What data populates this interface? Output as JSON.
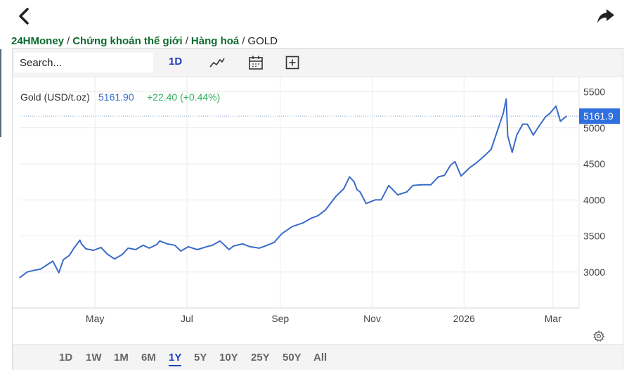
{
  "nav": {
    "back_icon": "chevron-left-icon",
    "share_icon": "share-arrow-icon"
  },
  "breadcrumb": {
    "items": [
      "24HMoney",
      "Chứng khoán thế giới",
      "Hàng hoá"
    ],
    "separator": "/",
    "current": "GOLD"
  },
  "toolbar": {
    "search_placeholder": "Search...",
    "interval": "1D",
    "icons": [
      "line-chart-icon",
      "calendar-icon",
      "add-indicator-icon"
    ]
  },
  "legend": {
    "symbol": "Gold (USD/t.oz)",
    "price": "5161.90",
    "change": "+22.40 (+0.44%)"
  },
  "price_label": "5161.9",
  "range_buttons": [
    "1D",
    "1W",
    "1M",
    "6M",
    "1Y",
    "5Y",
    "10Y",
    "25Y",
    "50Y",
    "All"
  ],
  "active_range": "1Y",
  "colors": {
    "line": "#3a6bc9",
    "up": "#2fae5b",
    "brand_green": "#0d6b2e",
    "active": "#1d3fc1",
    "price_tag": "#2f6fe0"
  },
  "chart_data": {
    "type": "line",
    "title": "",
    "xlabel": "",
    "ylabel": "",
    "x_ticks": [
      "May",
      "Jul",
      "Sep",
      "Nov",
      "2026",
      "Mar"
    ],
    "y_ticks": [
      3000,
      3500,
      4000,
      4500,
      5000,
      5500
    ],
    "ylim": [
      2500,
      5700
    ],
    "grid": true,
    "last_value_line": 5161.9,
    "series": [
      {
        "name": "Gold (USD/t.oz)",
        "x": [
          "2025-03-12",
          "2025-03-17",
          "2025-03-21",
          "2025-03-26",
          "2025-03-31",
          "2025-04-03",
          "2025-04-07",
          "2025-04-10",
          "2025-04-14",
          "2025-04-17",
          "2025-04-21",
          "2025-04-22",
          "2025-04-25",
          "2025-04-30",
          "2025-05-05",
          "2025-05-09",
          "2025-05-14",
          "2025-05-19",
          "2025-05-23",
          "2025-05-28",
          "2025-06-02",
          "2025-06-06",
          "2025-06-11",
          "2025-06-13",
          "2025-06-18",
          "2025-06-23",
          "2025-06-27",
          "2025-07-02",
          "2025-07-08",
          "2025-07-14",
          "2025-07-18",
          "2025-07-23",
          "2025-07-29",
          "2025-08-01",
          "2025-08-07",
          "2025-08-12",
          "2025-08-18",
          "2025-08-22",
          "2025-08-28",
          "2025-09-02",
          "2025-09-09",
          "2025-09-16",
          "2025-09-22",
          "2025-09-26",
          "2025-10-01",
          "2025-10-08",
          "2025-10-13",
          "2025-10-17",
          "2025-10-20",
          "2025-10-22",
          "2025-10-24",
          "2025-10-28",
          "2025-11-03",
          "2025-11-07",
          "2025-11-12",
          "2025-11-18",
          "2025-11-24",
          "2025-11-28",
          "2025-12-04",
          "2025-12-10",
          "2025-12-15",
          "2025-12-19",
          "2025-12-23",
          "2025-12-26",
          "2025-12-30",
          "2026-01-05",
          "2026-01-09",
          "2026-01-14",
          "2026-01-19",
          "2026-01-23",
          "2026-01-27",
          "2026-01-29",
          "2026-01-30",
          "2026-02-02",
          "2026-02-05",
          "2026-02-09",
          "2026-02-12",
          "2026-02-16",
          "2026-02-20",
          "2026-02-24",
          "2026-02-27",
          "2026-03-03",
          "2026-03-06",
          "2026-03-10"
        ],
        "y": [
          2920,
          3000,
          3020,
          3040,
          3110,
          3150,
          2990,
          3170,
          3230,
          3330,
          3440,
          3390,
          3320,
          3300,
          3340,
          3250,
          3180,
          3240,
          3330,
          3310,
          3370,
          3330,
          3380,
          3430,
          3390,
          3370,
          3290,
          3350,
          3310,
          3350,
          3370,
          3430,
          3310,
          3360,
          3390,
          3350,
          3330,
          3360,
          3410,
          3530,
          3630,
          3680,
          3750,
          3780,
          3860,
          4050,
          4150,
          4320,
          4250,
          4140,
          4110,
          3950,
          4000,
          4000,
          4200,
          4070,
          4110,
          4200,
          4210,
          4210,
          4320,
          4340,
          4480,
          4530,
          4330,
          4450,
          4510,
          4600,
          4700,
          4950,
          5200,
          5400,
          4890,
          4660,
          4900,
          5050,
          5050,
          4900,
          5030,
          5150,
          5200,
          5300,
          5090,
          5161.9
        ]
      }
    ]
  }
}
